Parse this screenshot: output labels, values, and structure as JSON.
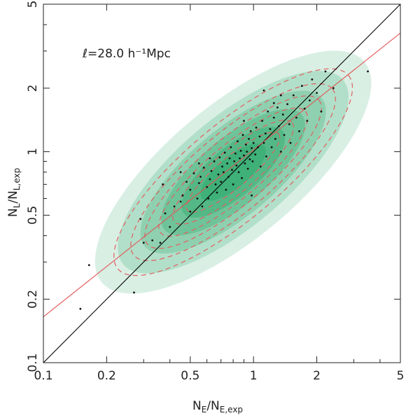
{
  "chart_data": {
    "type": "scatter",
    "title": "",
    "annotation": "ℓ=28.0 h⁻¹Mpc",
    "xlabel": {
      "main": "N",
      "sub1": "E",
      "mid": "/N",
      "sub2": "E,exp"
    },
    "ylabel": {
      "main": "N",
      "sub1": "L",
      "mid": "/N",
      "sub2": "L,exp"
    },
    "xscale": "log",
    "yscale": "log",
    "xlim": [
      0.1,
      5
    ],
    "ylim": [
      0.1,
      5
    ],
    "xticks": [
      0.1,
      0.2,
      0.5,
      1,
      2,
      5
    ],
    "xtick_labels": [
      "0.1",
      "0.2",
      "0.5",
      "1",
      "2",
      "5"
    ],
    "yticks": [
      0.1,
      0.2,
      0.5,
      1,
      2,
      5
    ],
    "ytick_labels": [
      "0.1",
      "0.2",
      "0.5",
      "1",
      "2",
      "5"
    ],
    "grid": false,
    "lines": [
      {
        "kind": "one-to-one",
        "color": "#000000",
        "points": [
          [
            0.1,
            0.1
          ],
          [
            5,
            5
          ]
        ]
      },
      {
        "kind": "fit",
        "color": "#e05555",
        "points": [
          [
            0.1,
            0.165
          ],
          [
            5,
            3.65
          ]
        ]
      }
    ],
    "density": {
      "color": "#2aa86a",
      "center": [
        0.8,
        0.8
      ],
      "contour_color": "#e06060",
      "contour_style": "dashed"
    },
    "points": [
      [
        0.15,
        0.18
      ],
      [
        0.165,
        0.29
      ],
      [
        0.27,
        0.215
      ],
      [
        0.29,
        0.48
      ],
      [
        0.3,
        0.37
      ],
      [
        0.33,
        0.38
      ],
      [
        0.36,
        0.37
      ],
      [
        0.38,
        0.51
      ],
      [
        0.37,
        0.7
      ],
      [
        0.4,
        0.44
      ],
      [
        0.42,
        0.55
      ],
      [
        0.45,
        0.58
      ],
      [
        0.46,
        0.62
      ],
      [
        0.48,
        0.72
      ],
      [
        0.5,
        0.66
      ],
      [
        0.5,
        0.52
      ],
      [
        0.52,
        0.79
      ],
      [
        0.54,
        0.6
      ],
      [
        0.55,
        0.71
      ],
      [
        0.56,
        0.76
      ],
      [
        0.57,
        0.55
      ],
      [
        0.58,
        0.84
      ],
      [
        0.6,
        0.68
      ],
      [
        0.61,
        0.6
      ],
      [
        0.62,
        0.74
      ],
      [
        0.63,
        0.81
      ],
      [
        0.65,
        0.9
      ],
      [
        0.66,
        0.7
      ],
      [
        0.67,
        0.64
      ],
      [
        0.68,
        0.78
      ],
      [
        0.69,
        0.94
      ],
      [
        0.7,
        0.72
      ],
      [
        0.71,
        0.85
      ],
      [
        0.72,
        0.8
      ],
      [
        0.73,
        0.99
      ],
      [
        0.74,
        0.66
      ],
      [
        0.75,
        0.88
      ],
      [
        0.76,
        0.76
      ],
      [
        0.77,
        0.93
      ],
      [
        0.78,
        1.05
      ],
      [
        0.79,
        0.82
      ],
      [
        0.8,
        0.7
      ],
      [
        0.81,
        0.9
      ],
      [
        0.82,
        0.98
      ],
      [
        0.83,
        0.86
      ],
      [
        0.84,
        1.12
      ],
      [
        0.85,
        0.8
      ],
      [
        0.86,
        0.93
      ],
      [
        0.87,
        1.01
      ],
      [
        0.88,
        0.75
      ],
      [
        0.89,
        1.2
      ],
      [
        0.9,
        0.96
      ],
      [
        0.91,
        0.88
      ],
      [
        0.92,
        1.08
      ],
      [
        0.93,
        1.0
      ],
      [
        0.94,
        0.83
      ],
      [
        0.95,
        1.15
      ],
      [
        0.96,
        0.92
      ],
      [
        0.97,
        1.25
      ],
      [
        0.98,
        1.04
      ],
      [
        0.99,
        0.9
      ],
      [
        1.0,
        1.1
      ],
      [
        1.02,
        0.97
      ],
      [
        1.03,
        1.3
      ],
      [
        1.05,
        1.05
      ],
      [
        1.07,
        1.18
      ],
      [
        1.08,
        0.85
      ],
      [
        1.1,
        1.4
      ],
      [
        1.12,
        1.1
      ],
      [
        1.14,
        1.22
      ],
      [
        1.15,
        0.95
      ],
      [
        1.17,
        1.55
      ],
      [
        1.2,
        1.28
      ],
      [
        1.22,
        1.05
      ],
      [
        1.25,
        1.45
      ],
      [
        1.27,
        1.15
      ],
      [
        1.3,
        1.62
      ],
      [
        1.32,
        1.32
      ],
      [
        1.35,
        1.0
      ],
      [
        1.38,
        1.5
      ],
      [
        1.4,
        1.2
      ],
      [
        1.45,
        1.68
      ],
      [
        1.48,
        1.35
      ],
      [
        1.5,
        1.1
      ],
      [
        1.55,
        1.85
      ],
      [
        1.6,
        1.45
      ],
      [
        1.65,
        1.25
      ],
      [
        1.7,
        2.05
      ],
      [
        1.75,
        1.6
      ],
      [
        1.8,
        1.4
      ],
      [
        1.85,
        1.75
      ],
      [
        1.9,
        2.2
      ],
      [
        2.0,
        1.9
      ],
      [
        2.1,
        1.55
      ],
      [
        2.2,
        2.4
      ],
      [
        1.12,
        1.95
      ],
      [
        1.25,
        1.7
      ],
      [
        0.62,
        0.93
      ],
      [
        0.55,
        0.88
      ],
      [
        0.45,
        0.8
      ],
      [
        2.4,
        2.0
      ],
      [
        3.5,
        2.4
      ],
      [
        0.98,
        0.62
      ],
      [
        0.9,
        1.4
      ],
      [
        1.35,
        1.85
      ]
    ]
  }
}
